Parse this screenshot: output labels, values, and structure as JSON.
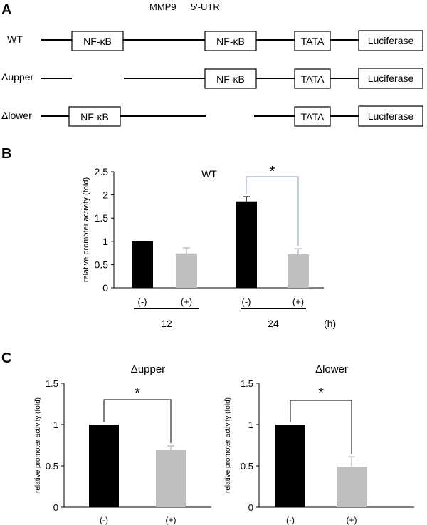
{
  "panel_labels": {
    "a": "A",
    "b": "B",
    "c": "C"
  },
  "constructs": {
    "header_left": "MMP9",
    "header_right": "5'-UTR",
    "rows": [
      {
        "label": "WT",
        "boxes": [
          "NF-κB",
          "NF-κB",
          "TATA",
          "Luciferase"
        ]
      },
      {
        "label": "Δupper",
        "boxes": [
          "NF-κB",
          "TATA",
          "Luciferase"
        ]
      },
      {
        "label": "Δlower",
        "boxes": [
          "NF-κB",
          "TATA",
          "Luciferase"
        ]
      }
    ]
  },
  "chart_data": [
    {
      "type": "bar",
      "title": "WT",
      "ylabel": "relative promoter activity (fold)",
      "ylim": [
        0,
        2.5
      ],
      "yticks": [
        "0",
        "0.5",
        "1",
        "1.5",
        "2",
        "2.5"
      ],
      "categories": [
        "(-)",
        "(+)",
        "(-)",
        "(+)"
      ],
      "values": [
        1.0,
        0.74,
        1.86,
        0.72
      ],
      "errors": [
        0.0,
        0.12,
        0.1,
        0.12
      ],
      "colors": [
        "#000000",
        "#bfbfbf",
        "#000000",
        "#bfbfbf"
      ],
      "groups": [
        {
          "label": "12"
        },
        {
          "label": "24"
        }
      ],
      "unit_label": "(h)",
      "significance": "*"
    },
    {
      "type": "bar",
      "title": "Δupper",
      "ylabel": "relative promoter activity (fold)",
      "ylim": [
        0,
        1.5
      ],
      "yticks": [
        "0",
        "0.5",
        "1",
        "1.5"
      ],
      "categories": [
        "(-)",
        "(+)"
      ],
      "values": [
        1.0,
        0.69
      ],
      "errors": [
        0.0,
        0.05
      ],
      "colors": [
        "#000000",
        "#bfbfbf"
      ],
      "significance": "*"
    },
    {
      "type": "bar",
      "title": "Δlower",
      "ylabel": "relative promoter activity (fold)",
      "ylim": [
        0,
        1.5
      ],
      "yticks": [
        "0",
        "0.5",
        "1",
        "1.5"
      ],
      "categories": [
        "(-)",
        "(+)"
      ],
      "values": [
        1.0,
        0.49
      ],
      "errors": [
        0.0,
        0.12
      ],
      "colors": [
        "#000000",
        "#bfbfbf"
      ],
      "significance": "*"
    }
  ]
}
